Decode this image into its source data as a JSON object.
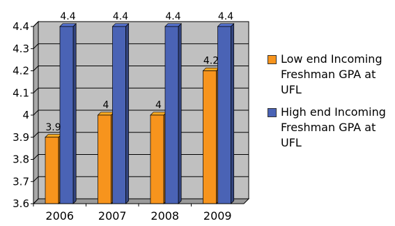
{
  "chart_data": {
    "type": "bar",
    "categories": [
      "2006",
      "2007",
      "2008",
      "2009"
    ],
    "series": [
      {
        "name": "Low end Incoming Freshman GPA at UFL",
        "values": [
          3.9,
          4.0,
          4.0,
          4.2
        ],
        "labels": [
          "3.9",
          "4",
          "4",
          "4.2"
        ],
        "color": "#F7941D"
      },
      {
        "name": "High end Incoming Freshman GPA at UFL",
        "values": [
          4.4,
          4.4,
          4.4,
          4.4
        ],
        "labels": [
          "4.4",
          "4.4",
          "4.4",
          "4.4"
        ],
        "color": "#4A63B5"
      }
    ],
    "yticks": [
      "3.6",
      "3.7",
      "3.8",
      "3.9",
      "4",
      "4.1",
      "4.2",
      "4.3",
      "4.4"
    ],
    "ylim": [
      3.6,
      4.4
    ],
    "grid": true,
    "legend_position": "right",
    "title": "",
    "xlabel": "",
    "ylabel": ""
  },
  "colors": {
    "plot_background": "#C0C0C0",
    "grid": "#000000"
  }
}
